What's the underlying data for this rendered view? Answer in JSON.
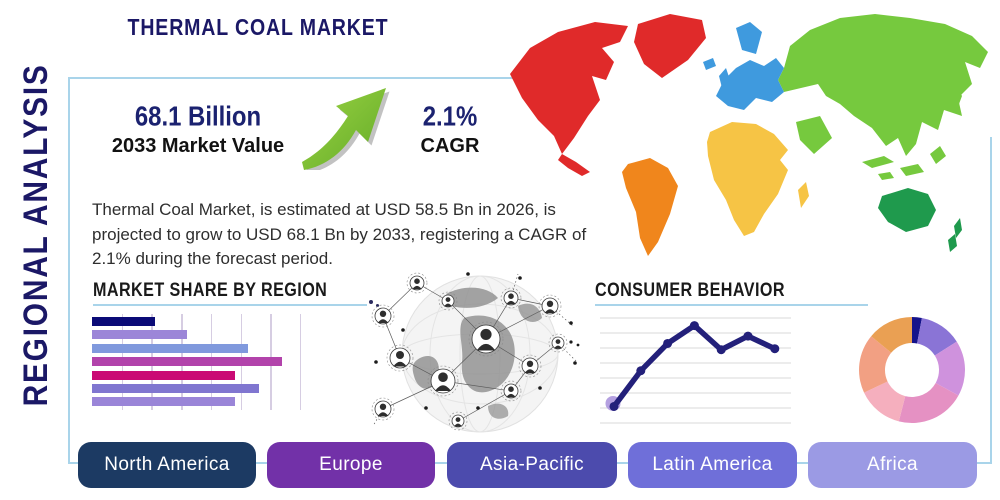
{
  "page": {
    "title": "THERMAL COAL MARKET",
    "sidebar_label": "REGIONAL ANALYSIS"
  },
  "stats": {
    "market_value": {
      "value": "68.1 Billion",
      "label": "2033 Market Value"
    },
    "cagr": {
      "value": "2.1%",
      "label": "CAGR"
    }
  },
  "description": "Thermal Coal Market, is estimated at USD 58.5 Bn in 2026, is projected to grow to USD 68.1 Bn by 2033, registering a CAGR of 2.1% during the forecast period.",
  "theme": {
    "navy": "#1b1866",
    "heading_color": "#1a1a1a",
    "panel_border": "#a9d4ea",
    "underline": "#a9d4ea",
    "body_text": "#2e2e2e",
    "arrow_green": "#7dc242"
  },
  "map": {
    "continents": {
      "north_america": "#e02a2a",
      "greenland": "#e02a2a",
      "south_america": "#f0861c",
      "europe": "#3f9ade",
      "africa": "#f6c445",
      "asia": "#76c93e",
      "australia_oceania": "#1f9a4d"
    }
  },
  "regions": {
    "buttons": [
      {
        "label": "North America",
        "color": "#1c3a63"
      },
      {
        "label": "Europe",
        "color": "#7231a8"
      },
      {
        "label": "Asia-Pacific",
        "color": "#4c4bad"
      },
      {
        "label": "Latin America",
        "color": "#6f6fd9"
      },
      {
        "label": "Africa",
        "color": "#9b9ae4"
      }
    ]
  },
  "chart_data": [
    {
      "type": "bar",
      "title": "MARKET SHARE BY REGION",
      "orientation": "horizontal",
      "categories": [
        "",
        "",
        "",
        "",
        "",
        "",
        ""
      ],
      "values": [
        33,
        50,
        82,
        100,
        75,
        88,
        75
      ],
      "colors": [
        "#0b0b77",
        "#9c86d8",
        "#8099dd",
        "#b243ab",
        "#ca0a74",
        "#8076d0",
        "#9a85d8"
      ],
      "xlim": [
        0,
        100
      ],
      "grid": "vertical",
      "legend": "none"
    },
    {
      "type": "line",
      "title": "CONSUMER BEHAVIOR",
      "x": [
        1,
        2,
        3,
        4,
        5,
        6,
        7
      ],
      "values": [
        11,
        45,
        71,
        88,
        65,
        78,
        66
      ],
      "ylim": [
        0,
        100
      ],
      "color": "#23207a",
      "marker_color": "#23207a",
      "first_point_halo_color": "#b4a0e0",
      "grid": "horizontal",
      "legend": "none"
    },
    {
      "type": "pie",
      "subtype": "donut",
      "values": [
        3,
        13,
        17,
        21,
        14,
        18,
        14
      ],
      "colors": [
        "#15138b",
        "#8a74d6",
        "#cf92dd",
        "#e591c3",
        "#f5afbe",
        "#f2a083",
        "#eaa053"
      ],
      "start_angle_deg": -90,
      "direction": "clockwise",
      "legend": "none"
    }
  ]
}
